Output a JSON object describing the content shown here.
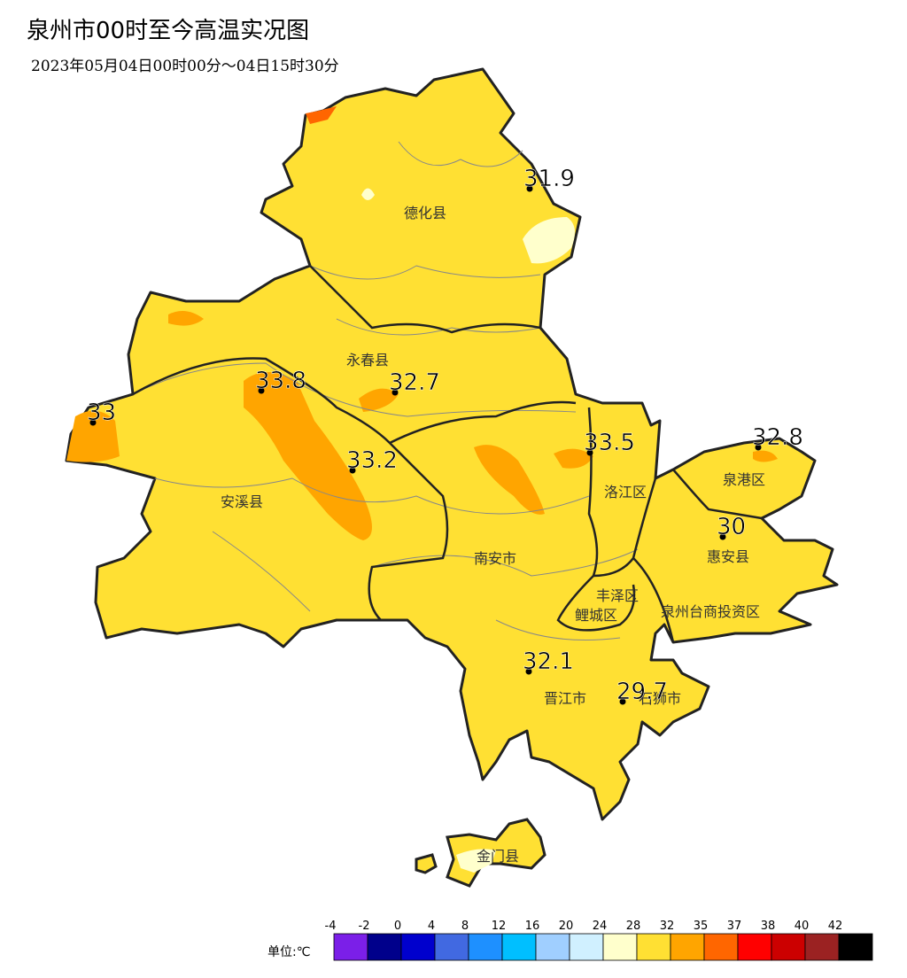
{
  "header": {
    "title": "泉州市00时至今高温实况图",
    "subtitle": "2023年05月04日00时00分～04日15时30分"
  },
  "stations": [
    {
      "value": 31.9
    },
    {
      "value": 33.8
    },
    {
      "value": 32.7
    },
    {
      "value": 33
    },
    {
      "value": 33.2
    },
    {
      "value": 33.5
    },
    {
      "value": 32.8
    },
    {
      "value": 30
    },
    {
      "value": 32.1
    },
    {
      "value": 29.7
    }
  ],
  "districts": [
    "德化县",
    "永春县",
    "安溪县",
    "南安市",
    "洛江区",
    "泉港区",
    "惠安县",
    "丰泽区",
    "鲤城区",
    "泉州台商投资区",
    "晋江市",
    "石狮市",
    "金门县"
  ],
  "legend": {
    "unit": "单位:℃",
    "ticks": [
      -4,
      -2,
      0,
      4,
      8,
      12,
      16,
      20,
      24,
      28,
      32,
      35,
      37,
      38,
      40,
      42
    ],
    "colors": [
      "#7b1fe8",
      "#00008b",
      "#0000cd",
      "#4169e1",
      "#1e90ff",
      "#00bfff",
      "#a0cfff",
      "#d0f0ff",
      "#ffffcc",
      "#ffe033",
      "#ffa500",
      "#ff6600",
      "#ff0000",
      "#cc0000",
      "#9b2222",
      "#000000"
    ]
  }
}
